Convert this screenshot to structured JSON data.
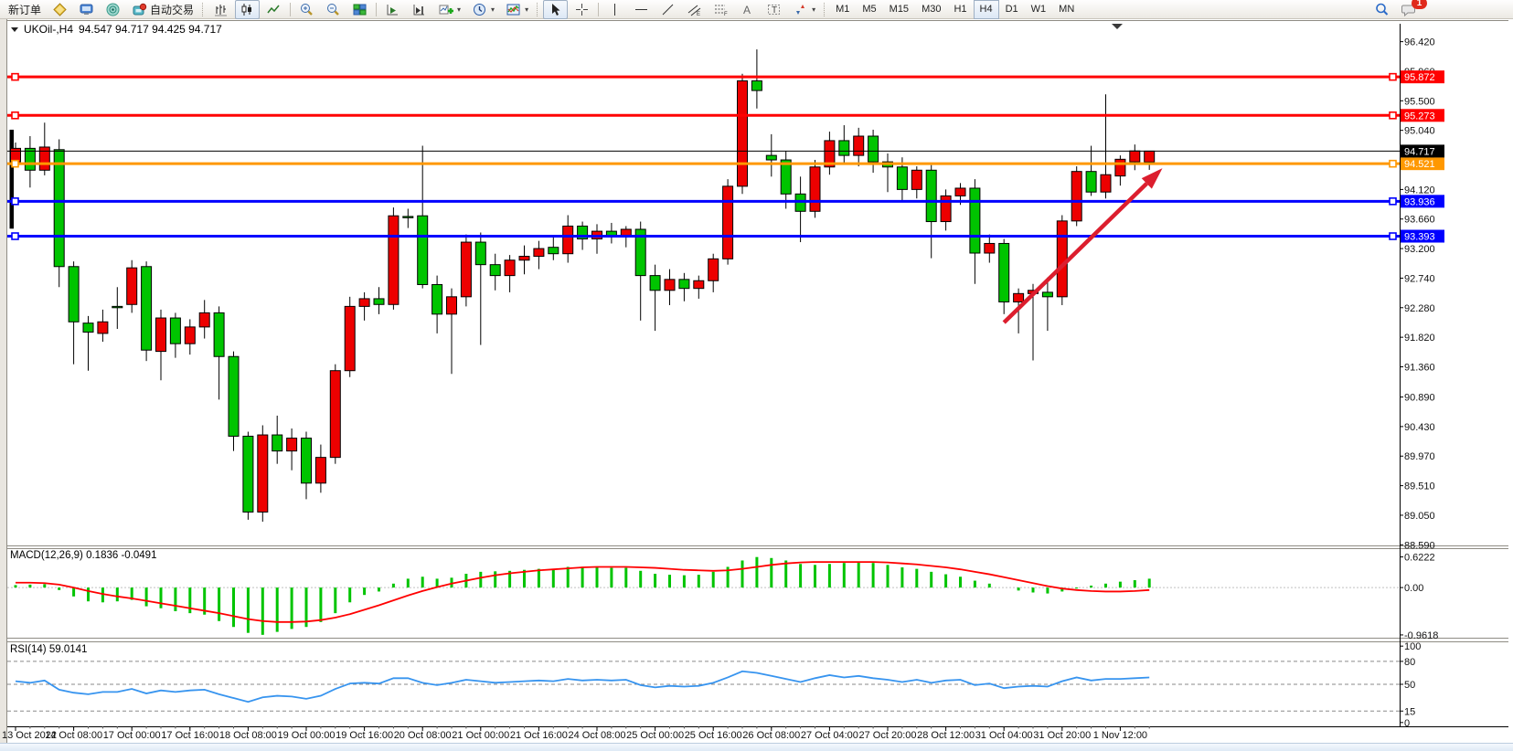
{
  "toolbar": {
    "new_order_label": "新订单",
    "auto_trading_label": "自动交易",
    "timeframes": [
      "M1",
      "M5",
      "M15",
      "M30",
      "H1",
      "H4",
      "D1",
      "W1",
      "MN"
    ],
    "active_timeframe": "H4",
    "chat_badge": "1"
  },
  "chart_title": {
    "symbol": "UKOil-,H4",
    "ohlc_text": "94.547 94.717 94.425 94.717"
  },
  "macd_panel": {
    "label": "MACD(12,26,9)",
    "values_text": "0.1836 -0.0491",
    "axis_ticks": [
      "0.6222",
      "0.00",
      "-0.9618"
    ],
    "axis_values": [
      0.6222,
      0.0,
      -0.9618
    ]
  },
  "rsi_panel": {
    "label": "RSI(14)",
    "value_text": "59.0141",
    "axis_ticks": [
      "100",
      "80",
      "50",
      "15",
      "0"
    ],
    "axis_values": [
      100,
      80,
      50,
      15,
      0
    ],
    "level_lines": [
      80,
      50,
      15
    ]
  },
  "price_axis_ticks": [
    "96.420",
    "95.960",
    "95.500",
    "95.040",
    "94.580",
    "94.120",
    "93.660",
    "93.200",
    "92.740",
    "92.280",
    "91.820",
    "91.360",
    "90.890",
    "90.430",
    "89.970",
    "89.510",
    "89.050",
    "88.590"
  ],
  "price_axis_values": [
    96.42,
    95.96,
    95.5,
    95.04,
    94.58,
    94.12,
    93.66,
    93.2,
    92.74,
    92.28,
    91.82,
    91.36,
    90.89,
    90.43,
    89.97,
    89.51,
    89.05,
    88.59
  ],
  "date_axis_labels": [
    "13 Oct 2022",
    "14 Oct 08:00",
    "17 Oct 00:00",
    "17 Oct 16:00",
    "18 Oct 08:00",
    "19 Oct 00:00",
    "19 Oct 16:00",
    "20 Oct 08:00",
    "21 Oct 00:00",
    "21 Oct 16:00",
    "24 Oct 08:00",
    "25 Oct 00:00",
    "25 Oct 16:00",
    "26 Oct 08:00",
    "27 Oct 04:00",
    "27 Oct 20:00",
    "28 Oct 12:00",
    "31 Oct 04:00",
    "31 Oct 20:00",
    "1 Nov 12:00"
  ],
  "chart_data": [
    {
      "type": "candlestick",
      "title": "UKOil-,H4",
      "timeframe": "H4",
      "bull_color": "#ed0000",
      "bear_color": "#00c400",
      "wick_color": "#000000",
      "ylim": [
        88.58,
        96.5
      ],
      "grid": false,
      "candles_per_x_label": 4,
      "current_price": 94.717,
      "current_price_label": "94.717",
      "hlines": [
        {
          "price": 95.872,
          "label": "95.872",
          "color": "#ff0000"
        },
        {
          "price": 95.273,
          "label": "95.273",
          "color": "#ff0000"
        },
        {
          "price": 94.521,
          "label": "94.521",
          "color": "#ff9800"
        },
        {
          "price": 93.936,
          "label": "93.936",
          "color": "#0000ff"
        },
        {
          "price": 93.393,
          "label": "93.393",
          "color": "#0000ff"
        }
      ],
      "trend_arrow": {
        "from_candle": 68.0,
        "from_price": 92.05,
        "to_candle": 78.9,
        "to_price": 94.45,
        "color": "#dc1e2e"
      },
      "clipped_left_bar": {
        "high": 95.05,
        "low": 93.51
      },
      "candles": [
        [
          94.55,
          94.85,
          94.5,
          94.76
        ],
        [
          94.76,
          94.95,
          94.15,
          94.42
        ],
        [
          94.42,
          95.16,
          94.34,
          94.78
        ],
        [
          94.74,
          94.9,
          92.6,
          92.92
        ],
        [
          92.92,
          93.0,
          91.4,
          92.06
        ],
        [
          92.04,
          92.15,
          91.3,
          91.9
        ],
        [
          91.88,
          92.25,
          91.75,
          92.06
        ],
        [
          92.3,
          92.6,
          91.95,
          92.28
        ],
        [
          92.33,
          93.02,
          92.2,
          92.9
        ],
        [
          92.92,
          93.0,
          91.45,
          91.62
        ],
        [
          91.6,
          92.25,
          91.15,
          92.12
        ],
        [
          92.12,
          92.2,
          91.5,
          91.72
        ],
        [
          91.72,
          92.1,
          91.55,
          91.98
        ],
        [
          91.98,
          92.4,
          91.8,
          92.2
        ],
        [
          92.2,
          92.3,
          90.85,
          91.52
        ],
        [
          91.52,
          91.6,
          90.05,
          90.28
        ],
        [
          90.28,
          90.35,
          88.98,
          89.1
        ],
        [
          89.1,
          90.45,
          88.95,
          90.3
        ],
        [
          90.3,
          90.6,
          89.85,
          90.05
        ],
        [
          90.05,
          90.4,
          89.75,
          90.25
        ],
        [
          90.25,
          90.35,
          89.3,
          89.55
        ],
        [
          89.55,
          90.15,
          89.4,
          89.95
        ],
        [
          89.95,
          91.4,
          89.85,
          91.3
        ],
        [
          91.3,
          92.45,
          91.2,
          92.3
        ],
        [
          92.3,
          92.52,
          92.08,
          92.42
        ],
        [
          92.42,
          92.6,
          92.18,
          92.33
        ],
        [
          92.33,
          93.84,
          92.25,
          93.71
        ],
        [
          93.7,
          93.82,
          93.52,
          93.68
        ],
        [
          93.71,
          94.8,
          92.58,
          92.64
        ],
        [
          92.64,
          92.78,
          91.88,
          92.18
        ],
        [
          92.18,
          92.58,
          91.25,
          92.45
        ],
        [
          92.45,
          93.42,
          92.3,
          93.3
        ],
        [
          93.3,
          93.45,
          91.7,
          92.95
        ],
        [
          92.95,
          93.12,
          92.55,
          92.78
        ],
        [
          92.78,
          93.1,
          92.52,
          93.02
        ],
        [
          93.02,
          93.25,
          92.8,
          93.08
        ],
        [
          93.08,
          93.32,
          92.88,
          93.2
        ],
        [
          93.22,
          93.38,
          93.02,
          93.12
        ],
        [
          93.12,
          93.72,
          92.98,
          93.55
        ],
        [
          93.55,
          93.62,
          93.18,
          93.35
        ],
        [
          93.35,
          93.58,
          93.12,
          93.47
        ],
        [
          93.47,
          93.6,
          93.28,
          93.38
        ],
        [
          93.38,
          93.55,
          93.22,
          93.5
        ],
        [
          93.5,
          93.62,
          92.08,
          92.78
        ],
        [
          92.78,
          92.95,
          91.92,
          92.55
        ],
        [
          92.55,
          92.88,
          92.32,
          92.72
        ],
        [
          92.72,
          92.82,
          92.38,
          92.58
        ],
        [
          92.58,
          92.78,
          92.42,
          92.7
        ],
        [
          92.7,
          93.12,
          92.52,
          93.04
        ],
        [
          93.04,
          94.28,
          92.95,
          94.17
        ],
        [
          94.17,
          95.92,
          94.05,
          95.81
        ],
        [
          95.81,
          96.3,
          95.38,
          95.66
        ],
        [
          94.65,
          94.98,
          94.32,
          94.58
        ],
        [
          94.58,
          94.72,
          93.82,
          94.05
        ],
        [
          94.05,
          94.32,
          93.3,
          93.78
        ],
        [
          93.78,
          94.58,
          93.68,
          94.47
        ],
        [
          94.47,
          95.02,
          94.35,
          94.88
        ],
        [
          94.88,
          95.12,
          94.52,
          94.65
        ],
        [
          94.65,
          95.08,
          94.48,
          94.95
        ],
        [
          94.95,
          95.05,
          94.38,
          94.55
        ],
        [
          94.55,
          94.68,
          94.08,
          94.47
        ],
        [
          94.47,
          94.62,
          93.92,
          94.12
        ],
        [
          94.12,
          94.48,
          93.98,
          94.42
        ],
        [
          94.42,
          94.5,
          93.05,
          93.62
        ],
        [
          93.62,
          94.12,
          93.48,
          94.02
        ],
        [
          94.02,
          94.22,
          93.88,
          94.14
        ],
        [
          94.14,
          94.28,
          92.65,
          93.13
        ],
        [
          93.13,
          93.42,
          92.98,
          93.28
        ],
        [
          93.28,
          93.35,
          92.18,
          92.37
        ],
        [
          92.37,
          92.58,
          91.88,
          92.5
        ],
        [
          92.5,
          92.65,
          91.46,
          92.55
        ],
        [
          92.52,
          92.75,
          91.92,
          92.45
        ],
        [
          92.45,
          93.72,
          92.32,
          93.63
        ],
        [
          93.63,
          94.48,
          93.55,
          94.4
        ],
        [
          94.4,
          94.8,
          94.02,
          94.08
        ],
        [
          94.08,
          95.6,
          93.98,
          94.35
        ],
        [
          94.33,
          94.65,
          94.18,
          94.59
        ],
        [
          94.55,
          94.82,
          94.42,
          94.72
        ],
        [
          94.547,
          94.717,
          94.425,
          94.717
        ]
      ]
    },
    {
      "type": "bar",
      "name": "MACD histogram with signal line",
      "ylim": [
        -1.0,
        0.8
      ],
      "hist_color": "#00c400",
      "signal_color": "#ff0000",
      "values": [
        0.05,
        0.06,
        0.07,
        -0.05,
        -0.18,
        -0.28,
        -0.3,
        -0.28,
        -0.25,
        -0.38,
        -0.42,
        -0.48,
        -0.52,
        -0.55,
        -0.68,
        -0.8,
        -0.92,
        -0.96,
        -0.9,
        -0.84,
        -0.8,
        -0.7,
        -0.52,
        -0.3,
        -0.15,
        -0.08,
        0.08,
        0.18,
        0.22,
        0.18,
        0.2,
        0.28,
        0.32,
        0.33,
        0.34,
        0.36,
        0.38,
        0.38,
        0.42,
        0.42,
        0.41,
        0.4,
        0.4,
        0.34,
        0.28,
        0.26,
        0.25,
        0.26,
        0.32,
        0.42,
        0.55,
        0.62,
        0.6,
        0.55,
        0.48,
        0.46,
        0.48,
        0.5,
        0.52,
        0.5,
        0.46,
        0.41,
        0.38,
        0.32,
        0.27,
        0.22,
        0.14,
        0.08,
        0.0,
        -0.06,
        -0.1,
        -0.12,
        -0.08,
        -0.02,
        0.04,
        0.08,
        0.12,
        0.15,
        0.18
      ],
      "signal": [
        0.1,
        0.1,
        0.09,
        0.06,
        0.0,
        -0.07,
        -0.13,
        -0.18,
        -0.22,
        -0.27,
        -0.32,
        -0.37,
        -0.42,
        -0.47,
        -0.52,
        -0.58,
        -0.64,
        -0.68,
        -0.7,
        -0.7,
        -0.69,
        -0.66,
        -0.61,
        -0.54,
        -0.45,
        -0.36,
        -0.26,
        -0.16,
        -0.07,
        0.01,
        0.08,
        0.14,
        0.2,
        0.25,
        0.29,
        0.32,
        0.35,
        0.37,
        0.39,
        0.41,
        0.42,
        0.42,
        0.42,
        0.41,
        0.4,
        0.38,
        0.36,
        0.35,
        0.34,
        0.35,
        0.38,
        0.42,
        0.46,
        0.49,
        0.51,
        0.52,
        0.52,
        0.52,
        0.52,
        0.52,
        0.51,
        0.49,
        0.47,
        0.44,
        0.41,
        0.37,
        0.32,
        0.27,
        0.21,
        0.15,
        0.09,
        0.03,
        -0.02,
        -0.05,
        -0.07,
        -0.08,
        -0.08,
        -0.07,
        -0.05
      ]
    },
    {
      "type": "line",
      "name": "RSI",
      "ylim": [
        -5,
        105
      ],
      "color": "#3794ef",
      "values": [
        54,
        52,
        55,
        43,
        39,
        37,
        40,
        40,
        44,
        38,
        42,
        40,
        42,
        43,
        37,
        32,
        27,
        33,
        35,
        34,
        31,
        35,
        44,
        51,
        52,
        51,
        58,
        58,
        52,
        49,
        52,
        56,
        54,
        52,
        53,
        54,
        55,
        54,
        57,
        55,
        56,
        55,
        56,
        49,
        46,
        48,
        47,
        48,
        52,
        59,
        67,
        65,
        61,
        57,
        53,
        58,
        62,
        59,
        61,
        58,
        56,
        53,
        56,
        52,
        55,
        56,
        49,
        51,
        45,
        47,
        48,
        47,
        54,
        59,
        55,
        57,
        57,
        58,
        59
      ]
    }
  ]
}
